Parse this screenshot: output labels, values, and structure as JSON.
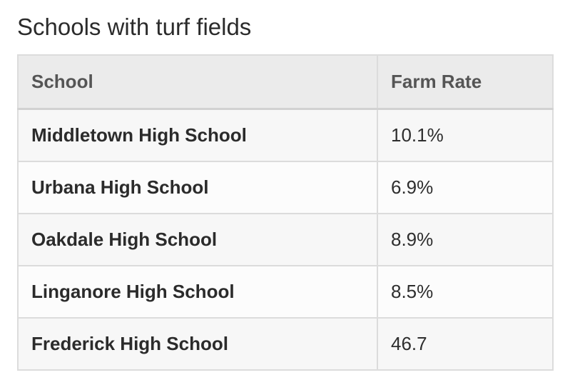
{
  "title": "Schools with turf fields",
  "table": {
    "headers": [
      "School",
      "Farm Rate"
    ],
    "rows": [
      {
        "school": "Middletown High School",
        "rate": "10.1%"
      },
      {
        "school": "Urbana High School",
        "rate": "6.9%"
      },
      {
        "school": "Oakdale High School",
        "rate": "8.9%"
      },
      {
        "school": "Linganore High School",
        "rate": "8.5%"
      },
      {
        "school": "Frederick High School",
        "rate": "46.7"
      }
    ]
  }
}
